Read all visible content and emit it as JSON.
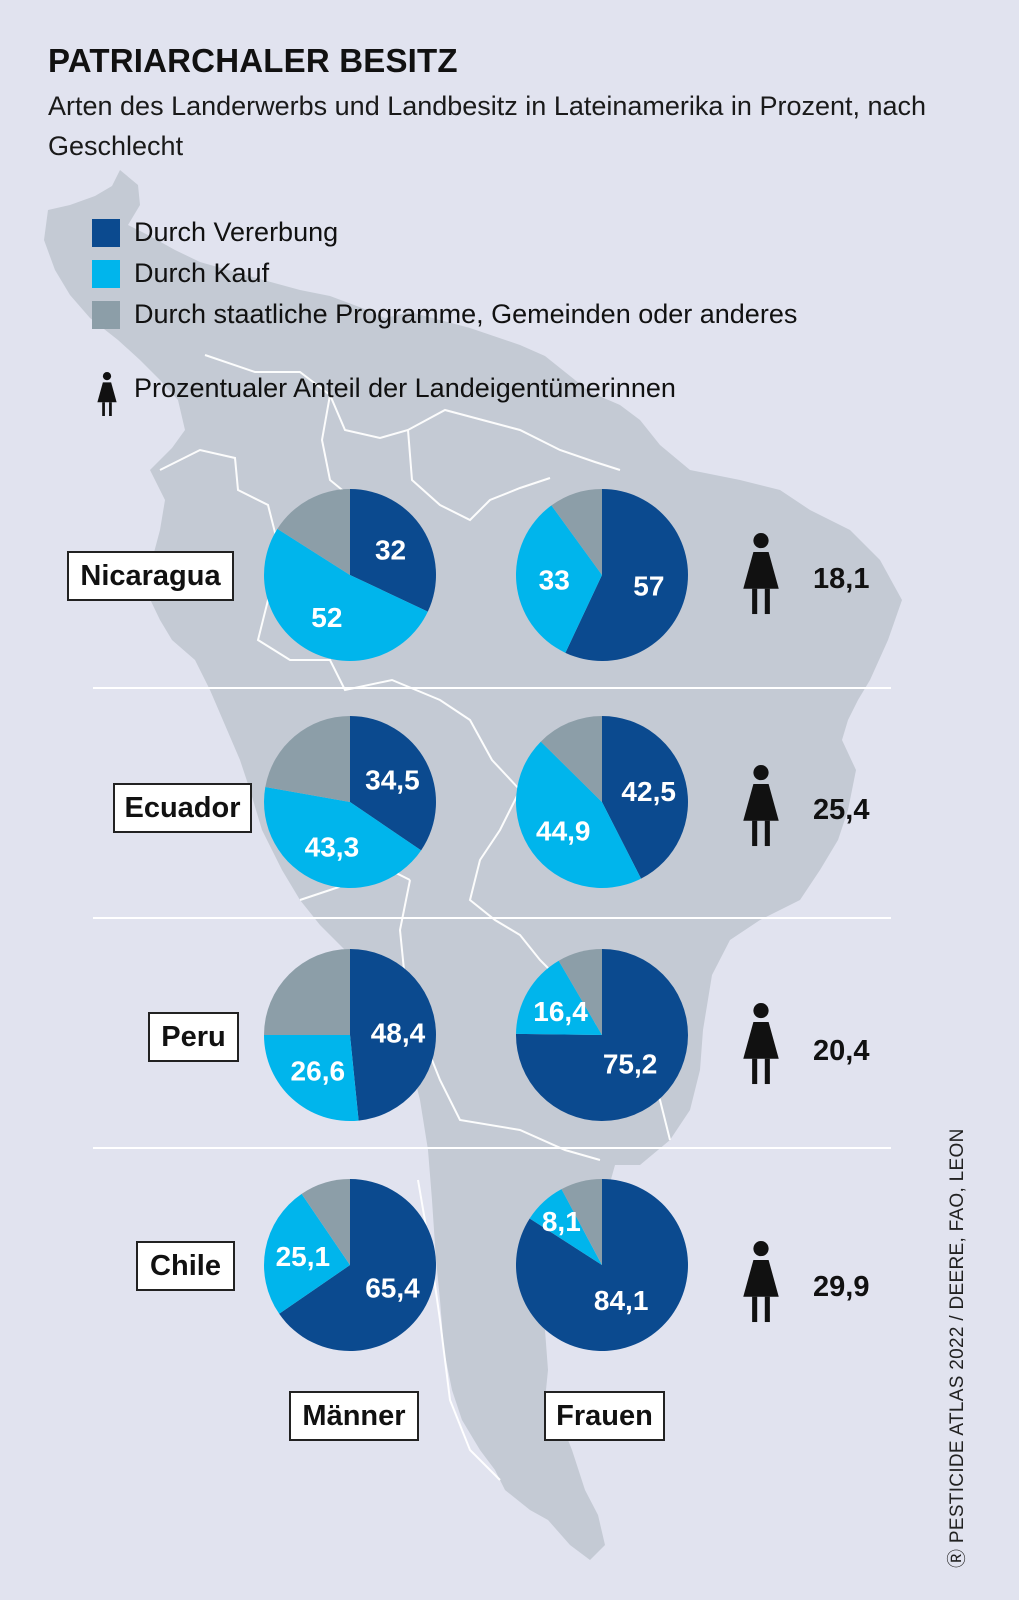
{
  "title": "PATRIARCHALER BESITZ",
  "subtitle": "Arten des Landerwerbs und Landbesitz in Lateinamerika in Prozent, nach Geschlecht",
  "legend": {
    "inheritance": "Durch Vererbung",
    "purchase": "Durch Kauf",
    "other": "Durch staatliche Programme, Gemeinden oder anderes",
    "women_share": "Prozentualer Anteil der Landeigentümerinnen"
  },
  "colors": {
    "inheritance": "#0b4a8f",
    "purchase": "#00b5ec",
    "other": "#8c9ea8",
    "background": "#e1e3ef",
    "map": "#c4cad4"
  },
  "column_labels": {
    "men": "Männer",
    "women": "Frauen"
  },
  "credit": "PESTICIDE ATLAS 2022 / DEERE, FAO, LEON",
  "chart_data": {
    "type": "pie",
    "categories": [
      "Durch Vererbung",
      "Durch Kauf",
      "Durch staatliche Programme, Gemeinden oder anderes"
    ],
    "countries": [
      {
        "name": "Nicaragua",
        "men": {
          "values": [
            32,
            52,
            null
          ],
          "labels": [
            "32",
            "52",
            ""
          ]
        },
        "women": {
          "values": [
            57,
            33,
            null
          ],
          "labels": [
            "57",
            "33",
            ""
          ]
        },
        "women_share": "18,1"
      },
      {
        "name": "Ecuador",
        "men": {
          "values": [
            34.5,
            43.3,
            null
          ],
          "labels": [
            "34,5",
            "43,3",
            ""
          ]
        },
        "women": {
          "values": [
            42.5,
            44.9,
            null
          ],
          "labels": [
            "42,5",
            "44,9",
            ""
          ]
        },
        "women_share": "25,4"
      },
      {
        "name": "Peru",
        "men": {
          "values": [
            48.4,
            26.6,
            null
          ],
          "labels": [
            "48,4",
            "26,6",
            ""
          ]
        },
        "women": {
          "values": [
            75.2,
            16.4,
            null
          ],
          "labels": [
            "75,2",
            "16,4",
            ""
          ]
        },
        "women_share": "20,4"
      },
      {
        "name": "Chile",
        "men": {
          "values": [
            65.4,
            25.1,
            null
          ],
          "labels": [
            "65,4",
            "25,1",
            ""
          ]
        },
        "women": {
          "values": [
            84.1,
            8.1,
            null
          ],
          "labels": [
            "84,1",
            "8,1",
            ""
          ]
        },
        "women_share": "29,9"
      }
    ]
  }
}
